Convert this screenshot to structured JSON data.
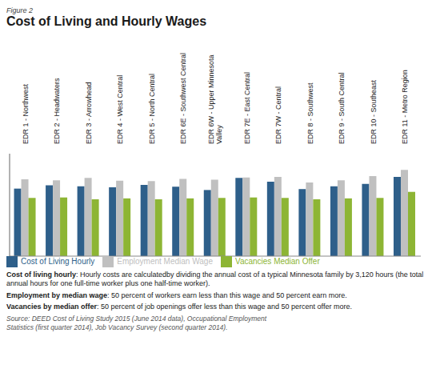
{
  "chart_data": {
    "type": "bar",
    "title": "Cost of Living and Hourly Wages",
    "categories": [
      "EDR 1 - Northwest",
      "EDR 2 - Headwaters",
      "EDR 3 - Arrowhead",
      "EDR 4 - West Central",
      "EDR 5 - North Central",
      "EDR 6E - Southwest Central",
      "EDR 6W - Upper Minnesota\nValley",
      "EDR 7E - East Central",
      "EDR 7W - Central",
      "EDR 8 - Southwest",
      "EDR 9 - South Central",
      "EDR 10 - Southeast",
      "EDR 11 - Metro Region"
    ],
    "series": [
      {
        "name": "Cost of Living Hourly",
        "color": "#2E5F8A",
        "values": [
          14.5,
          15.2,
          15.0,
          14.8,
          15.3,
          14.9,
          14.2,
          16.8,
          16.0,
          14.4,
          15.0,
          15.5,
          17.0
        ]
      },
      {
        "name": "Employment Median Wage",
        "color": "#C0C0C0",
        "values": [
          16.5,
          16.3,
          16.8,
          16.2,
          16.1,
          16.6,
          16.4,
          16.9,
          17.0,
          15.8,
          16.3,
          17.2,
          18.5
        ]
      },
      {
        "name": "Vacancies Median Offer",
        "color": "#8DB534",
        "values": [
          12.5,
          12.6,
          12.2,
          12.4,
          12.2,
          12.4,
          12.5,
          12.6,
          12.5,
          12.2,
          12.4,
          12.5,
          13.8
        ]
      }
    ],
    "ylim": [
      0,
      22
    ],
    "tick_labels": "x",
    "grid": false,
    "legend": "bottom",
    "annotations": [
      "Figure 2",
      "Cost of living hourly: Hourly costs are calculatedby dividing the annual cost of a typical Minnesota family by 3,120 hours (the total annual hours for one full-time worker plus one half-time worker).",
      "Employment by median wage: 50 percent of workers earn less than this wage and 50 percent earn more.",
      "Vacancies by median offer: 50 percent of job openings offer less than this wage and 50 percent offer more.",
      "Source: DEED Cost of Living Study 2015 (June 2014 data), Occupational Employment\nStatistics (first quarter 2014), Job Vacancy Survey (second quarter 2014)."
    ]
  }
}
